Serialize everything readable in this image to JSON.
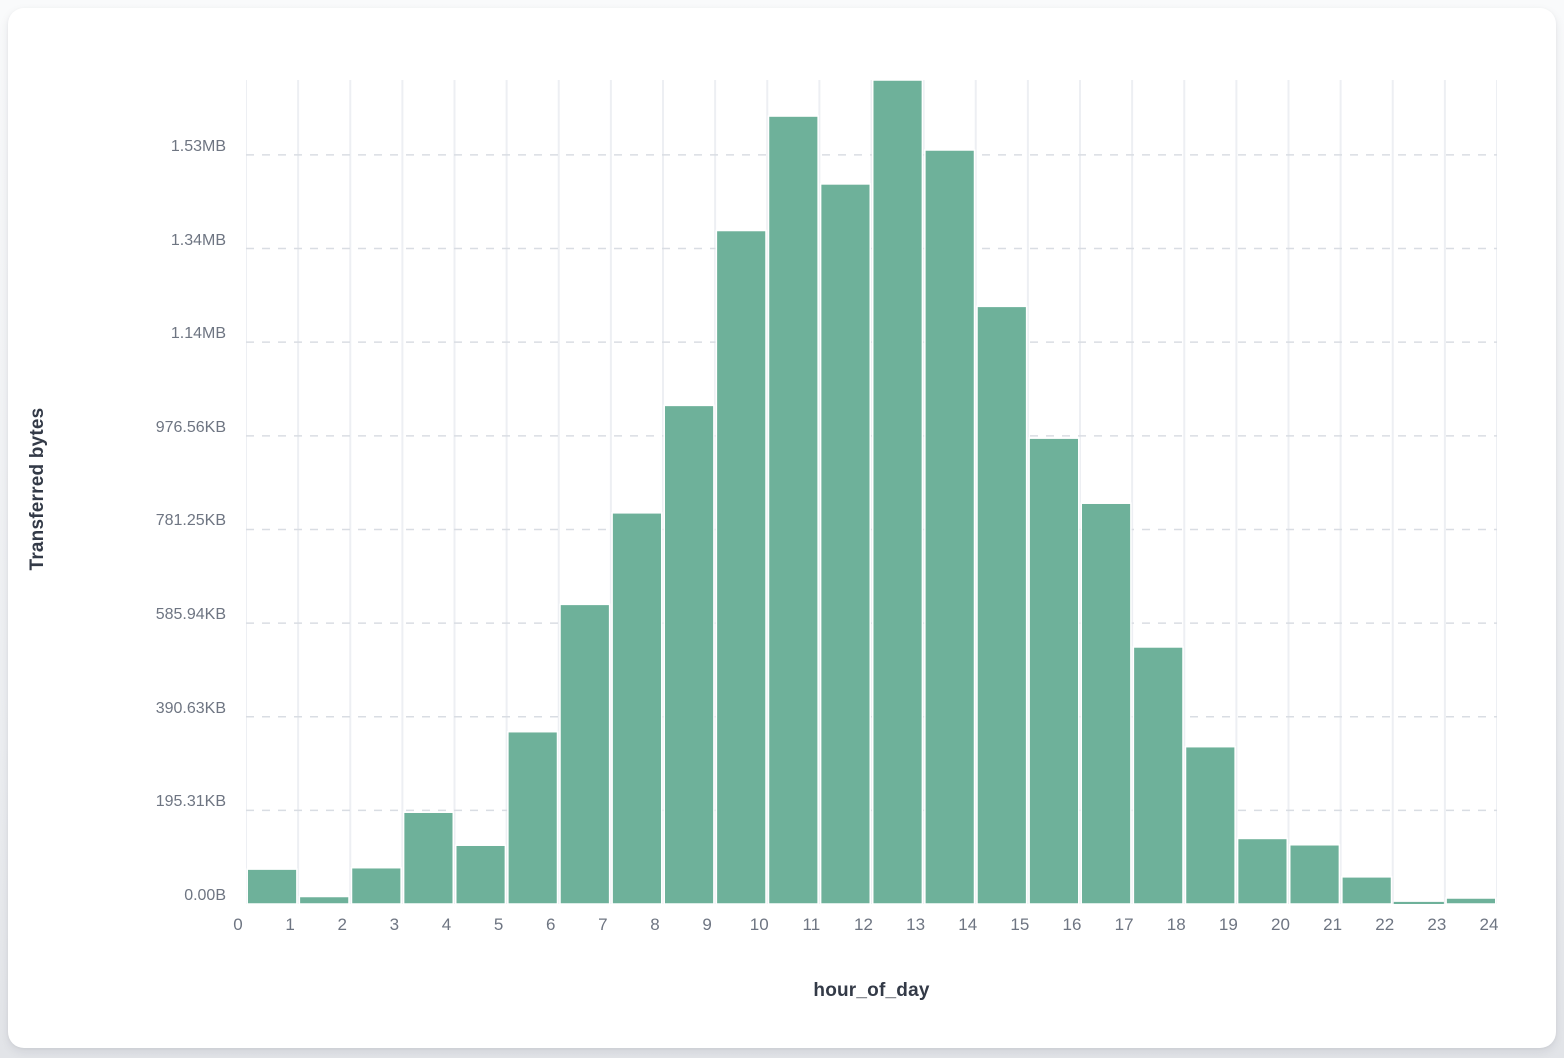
{
  "card": {
    "background": "#ffffff"
  },
  "chart_data": {
    "type": "bar",
    "subtype": "histogram",
    "title": "",
    "xlabel": "hour_of_day",
    "ylabel": "Transferred bytes",
    "categories": [
      0,
      1,
      2,
      3,
      4,
      5,
      6,
      7,
      8,
      9,
      10,
      11,
      12,
      13,
      14,
      15,
      16,
      17,
      18,
      19,
      20,
      21,
      22,
      23
    ],
    "values": [
      74500,
      16000,
      77500,
      196000,
      125500,
      368000,
      640000,
      835500,
      1065000,
      1438500,
      1683000,
      1538000,
      1760000,
      1610500,
      1276500,
      995000,
      856000,
      549000,
      336000,
      140000,
      126500,
      58000,
      4500,
      12800
    ],
    "values_unit": "bytes",
    "x_ticks": [
      0,
      1,
      2,
      3,
      4,
      5,
      6,
      7,
      8,
      9,
      10,
      11,
      12,
      13,
      14,
      15,
      16,
      17,
      18,
      19,
      20,
      21,
      22,
      23,
      24
    ],
    "ylim": [
      0,
      1760000
    ],
    "y_ticks": [
      {
        "value": 0,
        "label": "0.00B"
      },
      {
        "value": 200000,
        "label": "195.31KB"
      },
      {
        "value": 400000,
        "label": "390.63KB"
      },
      {
        "value": 600000,
        "label": "585.94KB"
      },
      {
        "value": 800000,
        "label": "781.25KB"
      },
      {
        "value": 1000000,
        "label": "976.56KB"
      },
      {
        "value": 1200000,
        "label": "1.14MB"
      },
      {
        "value": 1400000,
        "label": "1.34MB"
      },
      {
        "value": 1600000,
        "label": "1.53MB"
      }
    ],
    "grid": {
      "vertical": true,
      "horizontal_dashed": true,
      "legend": "none"
    },
    "colors": {
      "bar_fill": "#6eb19a",
      "bar_gap": "#ffffff",
      "gridline_vertical": "#edeff3",
      "gridline_horizontal": "#d9dde3",
      "tick_text": "#6e7582",
      "axis_title_text": "#333a47"
    }
  }
}
